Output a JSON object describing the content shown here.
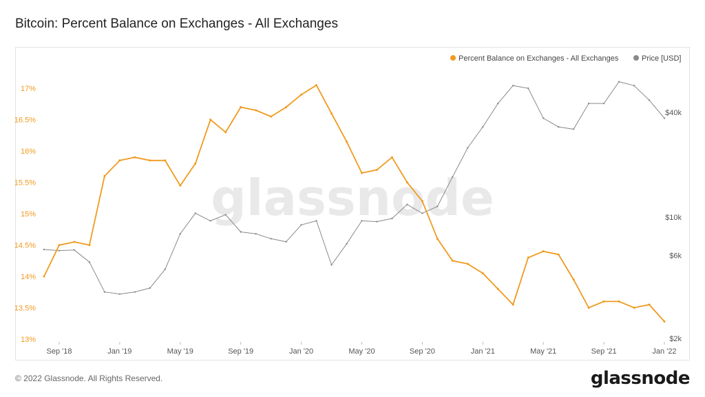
{
  "page": {
    "title": "Bitcoin: Percent Balance on Exchanges - All Exchanges",
    "footer": "© 2022 Glassnode. All Rights Reserved.",
    "brand": "glassnode",
    "watermark": "glassnode"
  },
  "colors": {
    "balance": "#f09a1e",
    "price": "#8a8a8a",
    "watermark": "#e9e9e9",
    "axis": "#555555"
  },
  "chart_data": {
    "type": "line",
    "title": "Bitcoin: Percent Balance on Exchanges - All Exchanges",
    "legend": {
      "placement": "top-right",
      "entries": [
        "Percent Balance on Exchanges - All Exchanges",
        "Price [USD]"
      ]
    },
    "x_ticks": [
      "Sep '18",
      "Jan '19",
      "May '19",
      "Sep '19",
      "Jan '20",
      "May '20",
      "Sep '20",
      "Jan '21",
      "May '21",
      "Sep '21",
      "Jan '22"
    ],
    "x_range": [
      "2018-08",
      "2022-01"
    ],
    "y_left": {
      "ticks": [
        "13%",
        "13.5%",
        "14%",
        "14.5%",
        "15%",
        "15.5%",
        "16%",
        "16.5%",
        "17%"
      ],
      "range": [
        13,
        17.2
      ]
    },
    "y_right": {
      "scale": "log",
      "ticks": [
        "$2k",
        "$6k",
        "$10k",
        "$40k"
      ],
      "tick_values": [
        2000,
        6000,
        10000,
        40000
      ]
    },
    "x_index_labels": [
      "Aug '18",
      "Sep '18",
      "Oct '18",
      "Nov '18",
      "Dec '18",
      "Jan '19",
      "Feb '19",
      "Mar '19",
      "Apr '19",
      "May '19",
      "Jun '19",
      "Jul '19",
      "Aug '19",
      "Sep '19",
      "Oct '19",
      "Nov '19",
      "Dec '19",
      "Jan '20",
      "Feb '20",
      "Mar '20",
      "Apr '20",
      "May '20",
      "Jun '20",
      "Jul '20",
      "Aug '20",
      "Sep '20",
      "Oct '20",
      "Nov '20",
      "Dec '20",
      "Jan '21",
      "Feb '21",
      "Mar '21",
      "Apr '21",
      "May '21",
      "Jun '21",
      "Jul '21",
      "Aug '21",
      "Sep '21",
      "Oct '21",
      "Nov '21",
      "Dec '21",
      "Jan '22"
    ],
    "series": [
      {
        "name": "Percent Balance on Exchanges - All Exchanges",
        "axis": "left",
        "values": [
          14.0,
          14.5,
          14.55,
          14.5,
          15.6,
          15.85,
          15.9,
          15.85,
          15.85,
          15.45,
          15.8,
          16.5,
          16.3,
          16.7,
          16.65,
          16.55,
          16.7,
          16.9,
          17.05,
          16.6,
          16.15,
          15.65,
          15.7,
          15.9,
          15.5,
          15.2,
          14.6,
          14.25,
          14.2,
          14.05,
          13.8,
          13.55,
          14.3,
          14.4,
          14.35,
          13.95,
          13.5,
          13.6,
          13.6,
          13.5,
          13.55,
          13.28
        ]
      },
      {
        "name": "Price [USD]",
        "axis": "right",
        "values": [
          6500,
          6400,
          6450,
          5500,
          3700,
          3600,
          3700,
          3900,
          5000,
          8000,
          10500,
          9500,
          10300,
          8200,
          8000,
          7500,
          7200,
          9000,
          9500,
          5300,
          7000,
          9500,
          9400,
          9800,
          11800,
          10500,
          11500,
          17000,
          25000,
          33000,
          45000,
          57000,
          55000,
          37000,
          33000,
          32000,
          45000,
          45000,
          60000,
          57000,
          47000,
          37000
        ]
      }
    ]
  }
}
